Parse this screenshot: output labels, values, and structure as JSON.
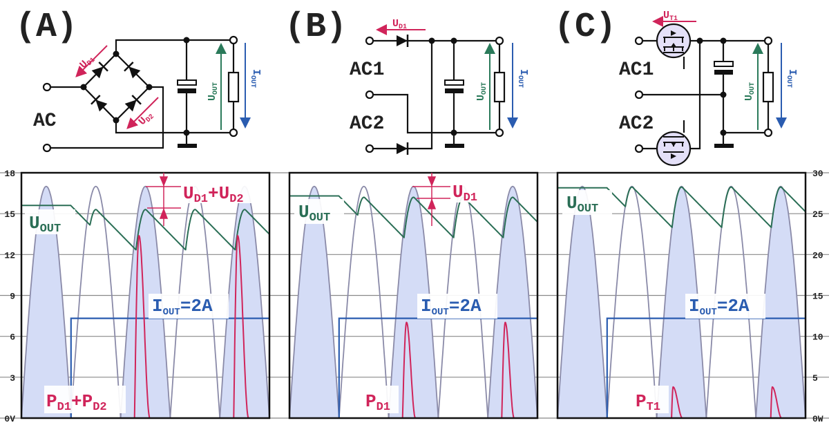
{
  "panels": [
    {
      "id": "A",
      "title": "(A)",
      "ac_labels": [
        "AC"
      ],
      "drop_label": {
        "main1": "U",
        "sub1": "D1",
        "plus": "+",
        "main2": "U",
        "sub2": "D2"
      },
      "uout_label": {
        "main": "U",
        "sub": "OUT"
      },
      "iout_label": {
        "main": "I",
        "sub": "OUT",
        "value": "=2A"
      },
      "power_label": {
        "main1": "P",
        "sub1": "D1",
        "plus": "+",
        "main2": "P",
        "sub2": "D2"
      },
      "circuit_labels": {
        "ud1": {
          "main": "U",
          "sub": "D1"
        },
        "ud2": {
          "main": "U",
          "sub": "D2"
        },
        "uout": {
          "main": "U",
          "sub": "OUT"
        },
        "iout": {
          "main": "I",
          "sub": "OUT"
        }
      }
    },
    {
      "id": "B",
      "title": "(B)",
      "ac_labels": [
        "AC1",
        "AC2"
      ],
      "drop_label": {
        "main1": "U",
        "sub1": "D1"
      },
      "uout_label": {
        "main": "U",
        "sub": "OUT"
      },
      "iout_label": {
        "main": "I",
        "sub": "OUT",
        "value": "=2A"
      },
      "power_label": {
        "main1": "P",
        "sub1": "D1"
      },
      "circuit_labels": {
        "ud1": {
          "main": "U",
          "sub": "D1"
        },
        "uout": {
          "main": "U",
          "sub": "OUT"
        },
        "iout": {
          "main": "I",
          "sub": "OUT"
        }
      }
    },
    {
      "id": "C",
      "title": "(C)",
      "ac_labels": [
        "AC1",
        "AC2"
      ],
      "uout_label": {
        "main": "U",
        "sub": "OUT"
      },
      "iout_label": {
        "main": "I",
        "sub": "OUT",
        "value": "=2A"
      },
      "power_label": {
        "main1": "P",
        "sub1": "T1"
      },
      "circuit_labels": {
        "ut1": {
          "main": "U",
          "sub": "T1"
        },
        "uout": {
          "main": "U",
          "sub": "OUT"
        },
        "iout": {
          "main": "I",
          "sub": "OUT"
        }
      }
    }
  ],
  "colors": {
    "uout": "#2a6e55",
    "iout": "#2a5cb0",
    "power": "#d0245a",
    "sine": "#8a8aa8",
    "fill": "#d4dcf6",
    "grid": "#888888"
  },
  "chart_data": {
    "type": "line",
    "x_unit": "half-cycles",
    "xlim": [
      0,
      5
    ],
    "left_axis": {
      "label": "V",
      "ticks": [
        "18",
        "15",
        "12",
        "9",
        "6",
        "3",
        "0V"
      ],
      "ylim": [
        0,
        18
      ]
    },
    "right_axis": {
      "label": "W",
      "ticks": [
        "30",
        "25",
        "20",
        "15",
        "10",
        "5",
        "0W"
      ],
      "ylim": [
        0,
        30
      ]
    },
    "sine_peak_V": 17,
    "shaded_half_cycles": [
      0,
      2,
      4
    ],
    "iout_step": {
      "t": 1,
      "value_A": 2,
      "plot_level_W": 12.2
    },
    "decay_V_per_halfcycle": 3.7,
    "series": [
      {
        "panel": "A",
        "uout_initial_V": 15.6,
        "rectifier_drop_V": 1.7,
        "power_pulses_W": [
          {
            "t_start": 2.28,
            "t_peak": 2.37,
            "t_end": 2.59,
            "peak": 22.3
          },
          {
            "t_start": 4.28,
            "t_peak": 4.36,
            "t_end": 4.58,
            "peak": 22.3
          }
        ]
      },
      {
        "panel": "B",
        "uout_initial_V": 16.3,
        "rectifier_drop_V": 0.8,
        "power_pulses_W": [
          {
            "t_start": 2.28,
            "t_peak": 2.36,
            "t_end": 2.54,
            "peak": 11.7
          },
          {
            "t_start": 4.28,
            "t_peak": 4.35,
            "t_end": 4.53,
            "peak": 11.7
          }
        ]
      },
      {
        "panel": "C",
        "uout_initial_V": 16.9,
        "rectifier_drop_V": 0.05,
        "power_pulses_W": [
          {
            "t_start": 2.3,
            "t_peak": 2.33,
            "t_end": 2.52,
            "peak": 3.8
          },
          {
            "t_start": 4.3,
            "t_peak": 4.33,
            "t_end": 4.52,
            "peak": 3.8
          }
        ]
      }
    ]
  }
}
